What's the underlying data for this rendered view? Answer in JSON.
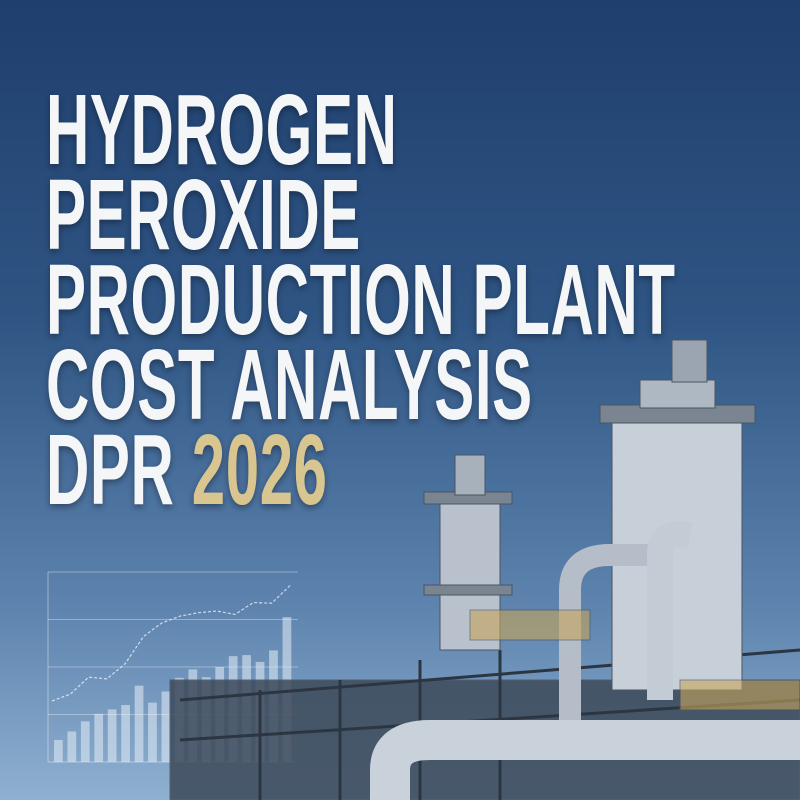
{
  "title": {
    "lines": [
      "HYDROGEN",
      "PEROXIDE",
      "PRODUCTION PLANT",
      "COST ANALYSIS"
    ],
    "last_line_prefix": "DPR",
    "year": "2026"
  },
  "colors": {
    "background_top": "#1f3f6e",
    "background_bottom": "#8fb0d0",
    "title": "#f4f6f8",
    "year": "#d8c58f"
  },
  "chart_data": {
    "type": "bar",
    "values": [
      65,
      90,
      120,
      142,
      155,
      168,
      225,
      175,
      208,
      248,
      273,
      250,
      280,
      312,
      315,
      295,
      329,
      427
    ],
    "line": [
      180,
      200,
      250,
      245,
      290,
      370,
      410,
      430,
      440,
      445,
      435,
      470,
      468,
      520
    ],
    "ylim": [
      0,
      560
    ],
    "grid": true
  }
}
